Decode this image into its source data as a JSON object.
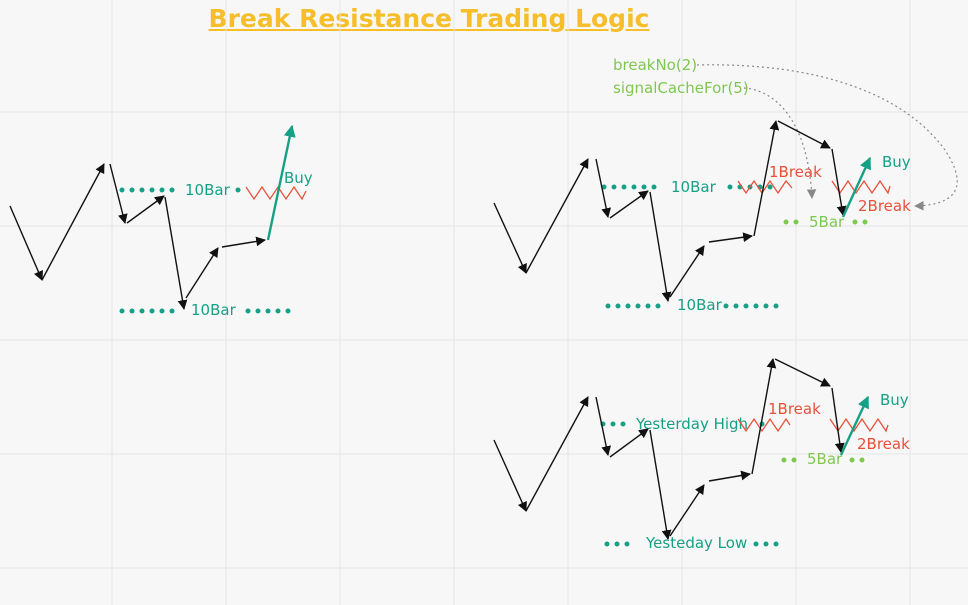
{
  "title": "Break Resistance Trading Logic",
  "colors": {
    "title": "#f5be2a",
    "teal": "#16a085",
    "red": "#e8503a",
    "green": "#7ec850",
    "black": "#111111",
    "grid": "#e6e6e6",
    "dashed": "#888888"
  },
  "panel1": {
    "upper_label": "10Bar",
    "lower_label": "10Bar",
    "signal": "Buy"
  },
  "panel2": {
    "param1": "breakNo(2)",
    "param2": "signalCacheFor(5)",
    "upper_label": "10Bar",
    "lower_label": "10Bar",
    "break1": "1Break",
    "break2": "2Break",
    "cache_label": "5Bar",
    "signal": "Buy"
  },
  "panel3": {
    "upper_label": "Yesterday High",
    "lower_label": "Yesteday Low",
    "break1": "1Break",
    "break2": "2Break",
    "cache_label": "5Bar",
    "signal": "Buy"
  }
}
